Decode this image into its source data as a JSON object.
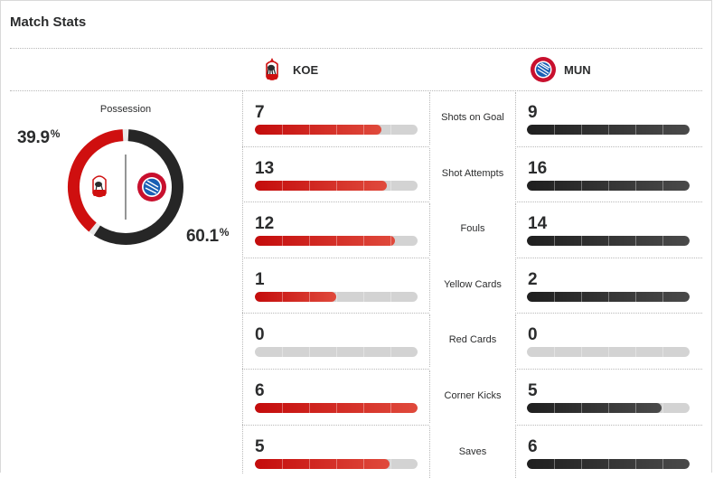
{
  "title": "Match Stats",
  "teams": {
    "home": {
      "abbr": "KOE",
      "logo": "fc-koeln-crest-icon",
      "color": "#cf0f0f"
    },
    "away": {
      "abbr": "MUN",
      "logo": "bayern-munich-crest-icon",
      "color": "#262626"
    }
  },
  "possession": {
    "label": "Possession",
    "home_value": "39.9",
    "away_value": "60.1",
    "unit": "%"
  },
  "stats": [
    {
      "label": "Shots on Goal",
      "home": "7",
      "away": "9",
      "home_fill": 0.78,
      "away_fill": 1.0
    },
    {
      "label": "Shot Attempts",
      "home": "13",
      "away": "16",
      "home_fill": 0.81,
      "away_fill": 1.0
    },
    {
      "label": "Fouls",
      "home": "12",
      "away": "14",
      "home_fill": 0.86,
      "away_fill": 1.0
    },
    {
      "label": "Yellow Cards",
      "home": "1",
      "away": "2",
      "home_fill": 0.5,
      "away_fill": 1.0
    },
    {
      "label": "Red Cards",
      "home": "0",
      "away": "0",
      "home_fill": 0.0,
      "away_fill": 0.0
    },
    {
      "label": "Corner Kicks",
      "home": "6",
      "away": "5",
      "home_fill": 1.0,
      "away_fill": 0.83
    },
    {
      "label": "Saves",
      "home": "5",
      "away": "6",
      "home_fill": 0.83,
      "away_fill": 1.0
    }
  ]
}
